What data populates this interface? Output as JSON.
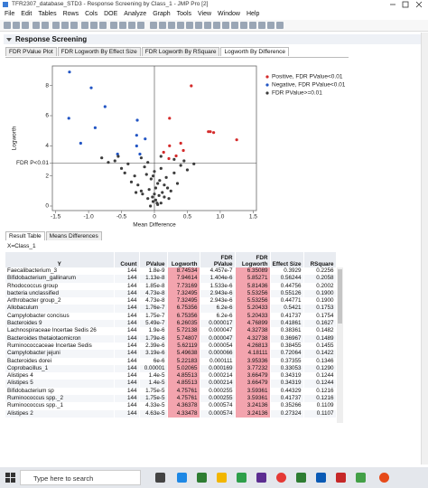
{
  "window": {
    "title": "TFR2307_database_STD3 - Response Screening by Class_1 - JMP Pro [2]"
  },
  "menu": [
    "File",
    "Edit",
    "Tables",
    "Rows",
    "Cols",
    "DOE",
    "Analyze",
    "Graph",
    "Tools",
    "View",
    "Window",
    "Help"
  ],
  "report": {
    "title": "Response Screening",
    "tabs": [
      "FDR PValue Plot",
      "FDR Logworth By Effect Size",
      "FDR Logworth By RSquare",
      "Logworth By Difference"
    ],
    "active_tab": 3
  },
  "chart_data": {
    "type": "scatter",
    "xlabel": "Mean Difference",
    "ylabel": "Logworth",
    "xlim": [
      -1.55,
      1.55
    ],
    "xticks": [
      -1.5,
      {
        "value": -1,
        "label": "-1.0"
      },
      -0.5,
      0,
      0.5,
      {
        "value": 1,
        "label": "1.0"
      },
      1.5
    ],
    "ylim": [
      -0.3,
      9.3
    ],
    "yticks": [
      0,
      2,
      {
        "value": 2.85,
        "label": "FDR P<0.01"
      },
      4,
      6,
      8
    ],
    "reference_lines": true,
    "legend": "right",
    "series": [
      {
        "name": "Positive, FDR PValue<0.01",
        "color": "#d42a2a",
        "x": [
          0.23,
          0.56,
          0.82,
          0.85,
          0.9,
          1.25,
          0.4,
          0.23,
          0.33,
          0.22,
          0.14,
          0.44
        ],
        "y": [
          5.83,
          7.98,
          4.94,
          4.94,
          4.88,
          4.4,
          4.17,
          4.0,
          3.33,
          3.15,
          3.57,
          3.69
        ]
      },
      {
        "name": "Negative, FDR PValue<0.01",
        "color": "#2255c4",
        "x": [
          -1.29,
          -0.96,
          -1.3,
          -1.12,
          -0.9,
          -0.75,
          -0.26,
          -0.27,
          -0.14,
          -0.56,
          -0.27,
          -0.22
        ],
        "y": [
          8.9,
          7.85,
          5.83,
          4.17,
          5.2,
          6.6,
          5.7,
          4.7,
          4.46,
          3.45,
          3.99,
          3.45
        ]
      },
      {
        "name": "FDR PValue>=0.01",
        "color": "#3c3c3c",
        "x": [
          0.05,
          -0.02,
          0.1,
          -0.1,
          0,
          0.15,
          -0.2,
          0.2,
          0.05,
          -0.05,
          -0.3,
          0.3,
          0.1,
          -0.15,
          -0.4,
          0.4,
          -0.5,
          0.5,
          -0.6,
          -0.7,
          0.25,
          -0.25,
          0.12,
          -0.08,
          0.02,
          -0.03,
          0.08,
          -0.12,
          0.18,
          -0.35,
          0.35,
          0,
          -0.45,
          0.45,
          -0.2,
          0.3,
          -0.55,
          0.04,
          -0.06,
          0.07,
          -0.18,
          0.22,
          -0.28,
          0.15,
          -0.1,
          0.6,
          -0.8,
          0.02,
          -0.02,
          0.1
        ],
        "y": [
          0.1,
          0.3,
          0.2,
          0.5,
          0.8,
          0.6,
          1,
          1.2,
          1.5,
          1.8,
          2,
          2.2,
          2.5,
          2.6,
          2.8,
          2.7,
          2.5,
          2.4,
          3,
          2.9,
          1,
          1.4,
          0.9,
          1.1,
          0.4,
          0.6,
          1.7,
          2.1,
          1.9,
          1.6,
          1.5,
          2.3,
          2.2,
          3,
          3.2,
          3.1,
          3.3,
          0.2,
          0,
          0.7,
          0.8,
          0.5,
          0.9,
          1.4,
          2.9,
          2.8,
          3.2,
          1.2,
          2,
          3.3
        ]
      }
    ]
  },
  "result": {
    "tabs": [
      "Result Table",
      "Means Differences"
    ],
    "active_tab": 0,
    "group_label": "X=Class_1",
    "columns": [
      "Y",
      "Count",
      "PValue",
      "Logworth",
      "FDR PValue",
      "FDR Logworth",
      "Effect Size",
      "RSquare"
    ],
    "shaded_columns": [
      3,
      5
    ],
    "shade_color": "#f3a4ae",
    "rows": [
      [
        "Faecalibacterium_3",
        "144",
        "1.8e-9",
        "8.74534",
        "4.457e-7",
        "6.35089",
        "0.3929",
        "0.2256"
      ],
      [
        "Bifidobacterium_gallinarum",
        "144",
        "1.13e-8",
        "7.94614",
        "1.404e-6",
        "5.85271",
        "0.56244",
        "0.2058"
      ],
      [
        "Rhodococcus group",
        "144",
        "1.85e-8",
        "7.73169",
        "1.533e-6",
        "5.81436",
        "0.44756",
        "0.2002"
      ],
      [
        "bacteria unclassified",
        "144",
        "4.73e-8",
        "7.32495",
        "2.943e-6",
        "5.53256",
        "0.55126",
        "0.1900"
      ],
      [
        "Arthrobacter group_2",
        "144",
        "4.73e-8",
        "7.32495",
        "2.943e-6",
        "5.53256",
        "0.44771",
        "0.1900"
      ],
      [
        "Allobaculum",
        "144",
        "1.76e-7",
        "6.75356",
        "6.2e-6",
        "5.20433",
        "0.5421",
        "0.1753"
      ],
      [
        "Campylobacter concisus",
        "144",
        "1.75e-7",
        "6.75356",
        "6.2e-6",
        "5.20433",
        "0.41737",
        "0.1754"
      ],
      [
        "Bacteroides 9",
        "144",
        "5.49e-7",
        "6.26035",
        "0.000017",
        "4.76899",
        "0.41861",
        "0.1627"
      ],
      [
        "Lachnospiraceae Incertae Sedis 26",
        "144",
        "1.9e-6",
        "5.72138",
        "0.000047",
        "4.32738",
        "0.38361",
        "0.1482"
      ],
      [
        "Bacteroides thetaiotaomicron",
        "144",
        "1.79e-6",
        "5.74807",
        "0.000047",
        "4.32738",
        "0.36967",
        "0.1489"
      ],
      [
        "Ruminococcaceae Incertae Sedis",
        "144",
        "2.39e-6",
        "5.62119",
        "0.000054",
        "4.26813",
        "0.38455",
        "0.1455"
      ],
      [
        "Campylobacter jejuni",
        "144",
        "3.19e-6",
        "5.49638",
        "0.000066",
        "4.18111",
        "0.72064",
        "0.1422"
      ],
      [
        "Bacteroides dorei",
        "144",
        "6e-6",
        "5.22183",
        "0.000111",
        "3.95336",
        "0.37355",
        "0.1346"
      ],
      [
        "Coprobacillus_1",
        "144",
        "0.00001",
        "5.02065",
        "0.000169",
        "3.77232",
        "0.33053",
        "0.1290"
      ],
      [
        "Alistipes 4",
        "144",
        "1.4e-5",
        "4.85513",
        "0.000214",
        "3.66479",
        "0.34319",
        "0.1244"
      ],
      [
        "Alistipes 5",
        "144",
        "1.4e-5",
        "4.85513",
        "0.000214",
        "3.66479",
        "0.34319",
        "0.1244"
      ],
      [
        "Bifidobacterium sp",
        "144",
        "1.75e-5",
        "4.75761",
        "0.000255",
        "3.59361",
        "0.44329",
        "0.1216"
      ],
      [
        "Ruminococcus spp._2",
        "144",
        "1.75e-5",
        "4.75761",
        "0.000255",
        "3.59361",
        "0.41737",
        "0.1216"
      ],
      [
        "Ruminococcus spp._1",
        "144",
        "4.33e-5",
        "4.36378",
        "0.000574",
        "3.24136",
        "0.35266",
        "0.1109"
      ],
      [
        "Alistipes 2",
        "144",
        "4.63e-5",
        "4.33478",
        "0.000574",
        "3.24136",
        "0.27324",
        "0.1107"
      ]
    ]
  },
  "taskbar": {
    "search": "Type here to search"
  }
}
